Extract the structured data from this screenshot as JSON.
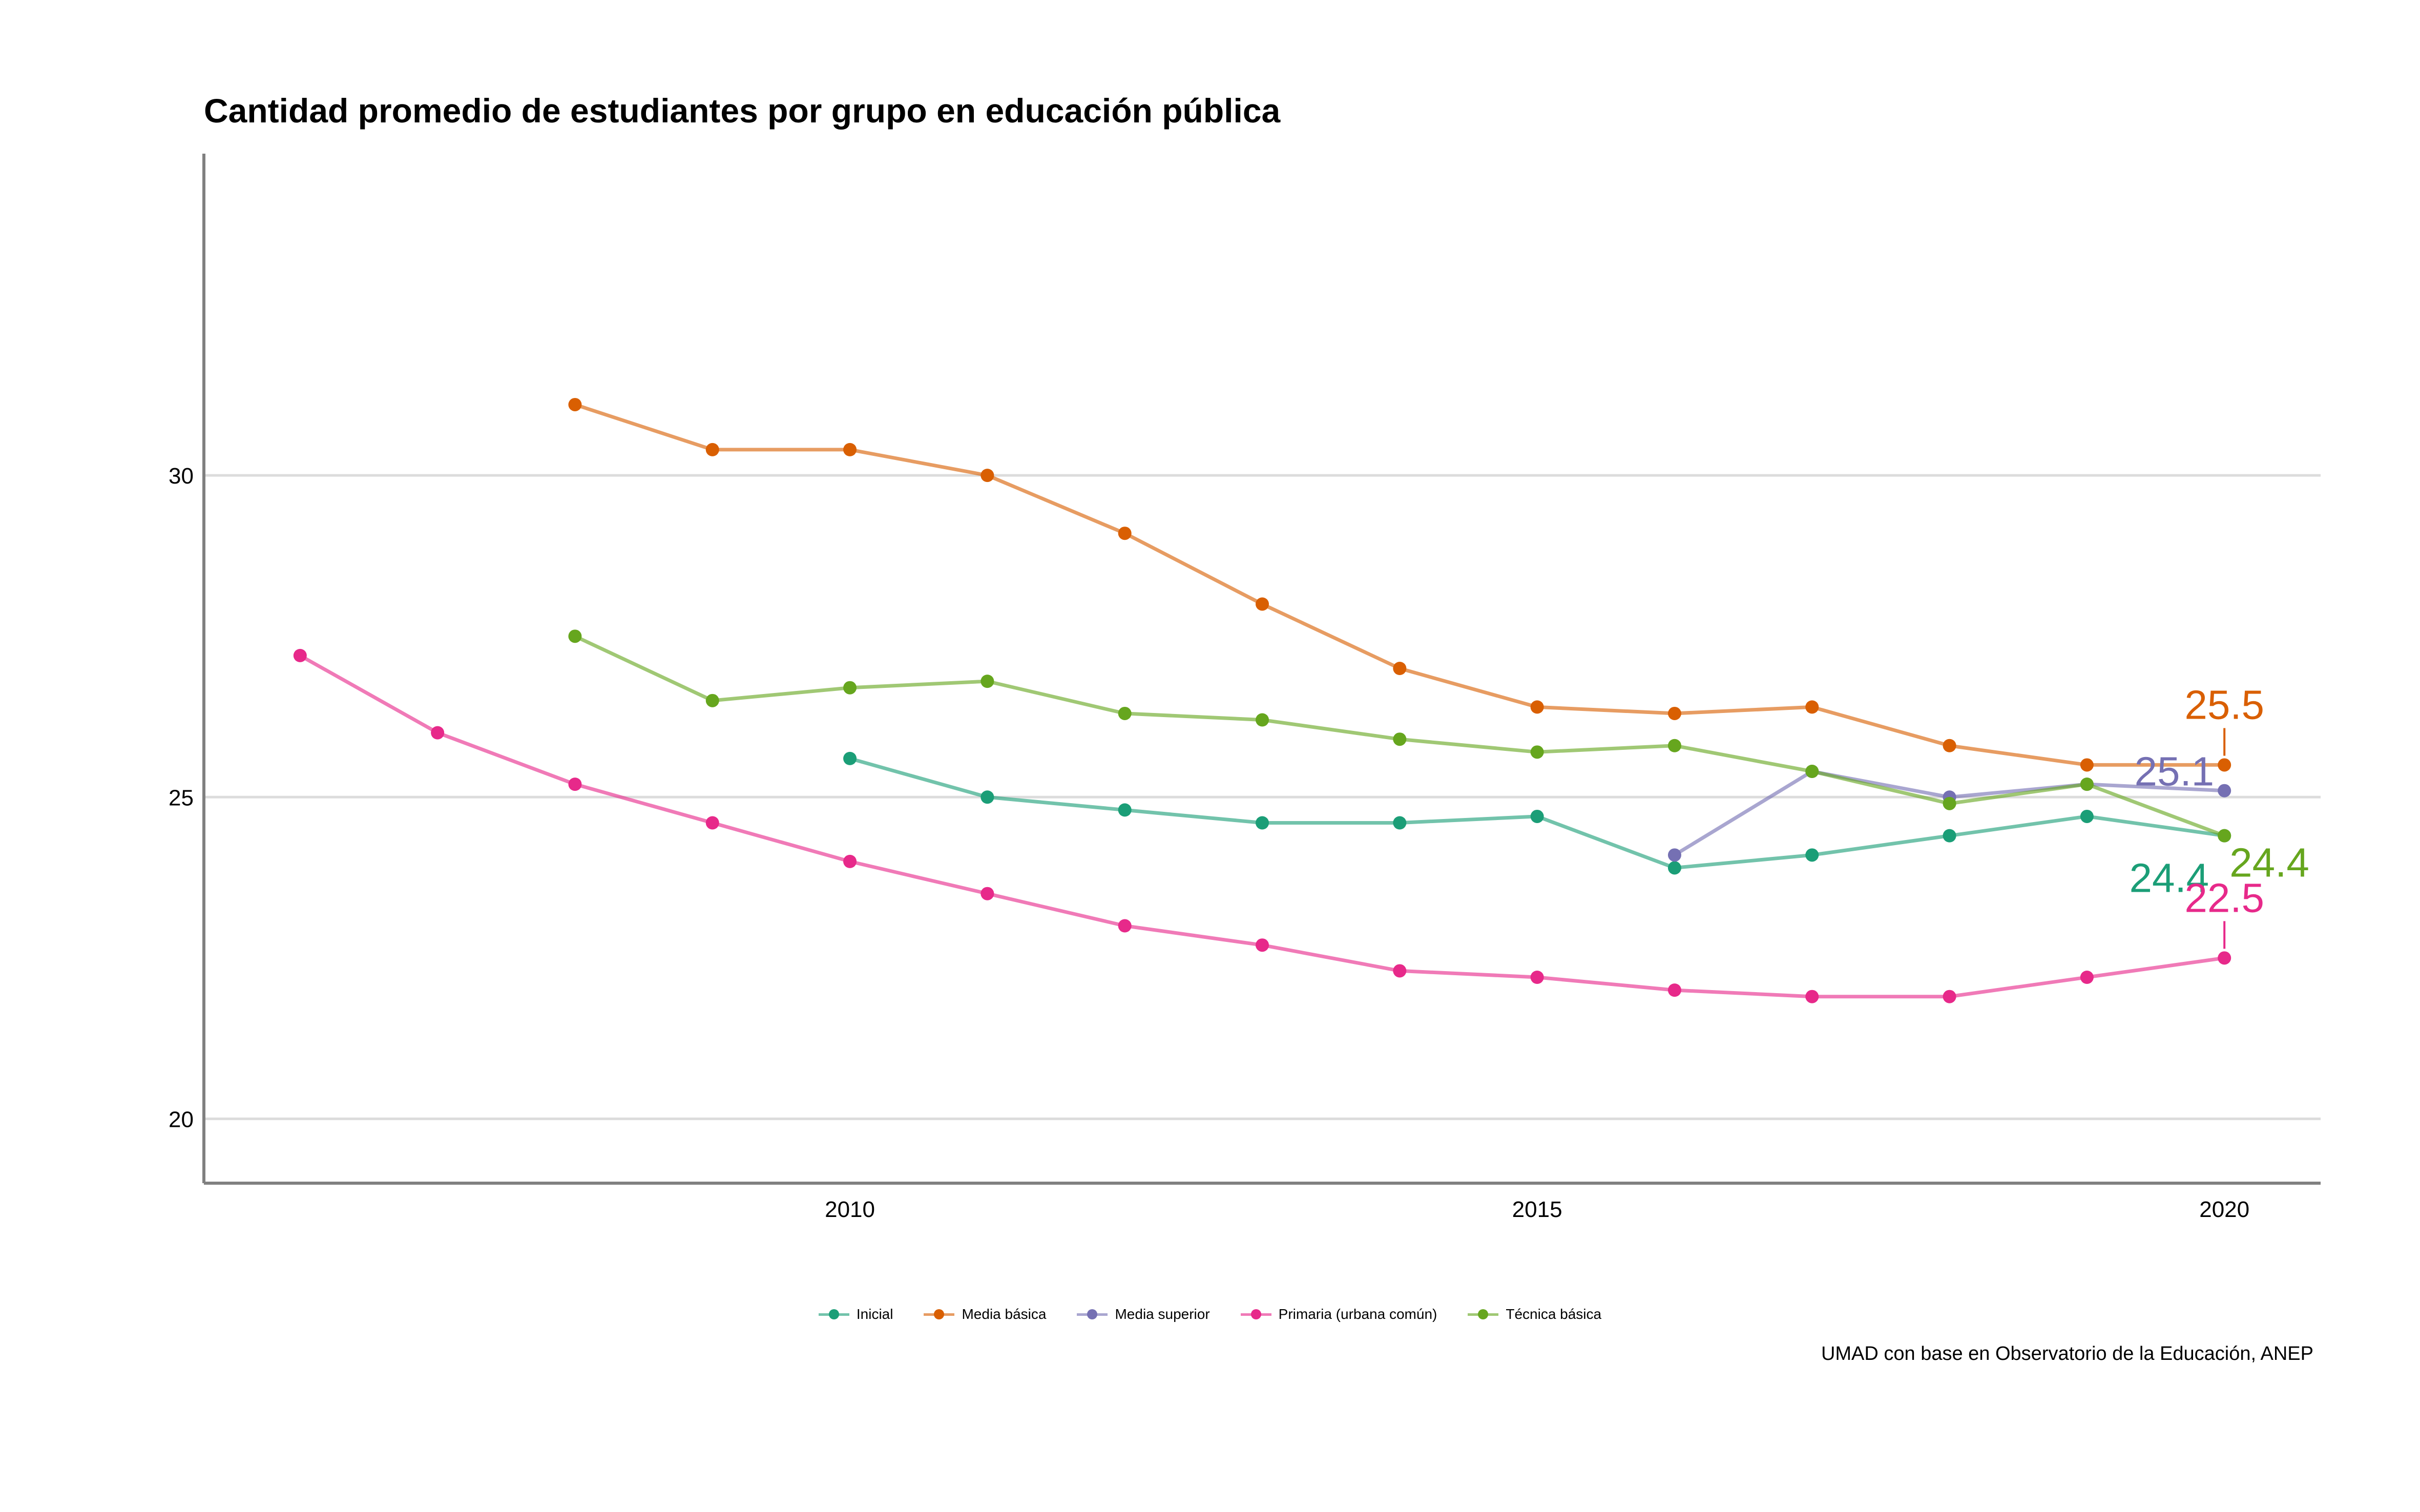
{
  "chart_data": {
    "type": "line",
    "title": "Cantidad promedio de estudiantes por grupo en educación pública",
    "caption": "UMAD con base en Observatorio de la Educación, ANEP",
    "xlabel": "",
    "ylabel": "",
    "xlim": [
      2005.3,
      2020.7
    ],
    "ylim": [
      19,
      35
    ],
    "x_ticks": [
      2010,
      2015,
      2020
    ],
    "y_ticks": [
      20,
      25,
      30
    ],
    "grid": "horizontal major",
    "legend_position": "bottom",
    "series": [
      {
        "name": "Inicial",
        "color": "#1B9E77",
        "x": [
          2010,
          2011,
          2012,
          2013,
          2014,
          2015,
          2016,
          2017,
          2018,
          2019,
          2020
        ],
        "values": [
          25.6,
          25.0,
          24.8,
          24.6,
          24.6,
          24.7,
          23.9,
          24.1,
          24.4,
          24.7,
          24.4
        ],
        "end_label": "24.4"
      },
      {
        "name": "Media básica",
        "color": "#D95F02",
        "x": [
          2008,
          2009,
          2010,
          2011,
          2012,
          2013,
          2014,
          2015,
          2016,
          2017,
          2018,
          2019,
          2020
        ],
        "values": [
          31.1,
          30.4,
          30.4,
          30.0,
          29.1,
          28.0,
          27.0,
          26.4,
          26.3,
          26.4,
          25.8,
          25.5,
          25.5
        ],
        "end_label": "25.5"
      },
      {
        "name": "Media superior",
        "color": "#7570B3",
        "x": [
          2016,
          2017,
          2018,
          2019,
          2020
        ],
        "values": [
          24.1,
          25.4,
          25.0,
          25.2,
          25.1
        ],
        "end_label": "25.1"
      },
      {
        "name": "Primaria (urbana común)",
        "color": "#E7298A",
        "x": [
          2006,
          2007,
          2008,
          2009,
          2010,
          2011,
          2012,
          2013,
          2014,
          2015,
          2016,
          2017,
          2018,
          2019,
          2020
        ],
        "values": [
          27.2,
          26.0,
          25.2,
          24.6,
          24.0,
          23.5,
          23.0,
          22.7,
          22.3,
          22.2,
          22.0,
          21.9,
          21.9,
          22.2,
          22.5
        ],
        "end_label": "22.5"
      },
      {
        "name": "Técnica básica",
        "color": "#66A61E",
        "x": [
          2008,
          2009,
          2010,
          2011,
          2012,
          2013,
          2014,
          2015,
          2016,
          2017,
          2018,
          2019,
          2020
        ],
        "values": [
          27.5,
          26.5,
          26.7,
          26.8,
          26.3,
          26.2,
          25.9,
          25.7,
          25.8,
          25.4,
          24.9,
          25.2,
          24.4
        ],
        "end_label": "24.4"
      }
    ]
  }
}
